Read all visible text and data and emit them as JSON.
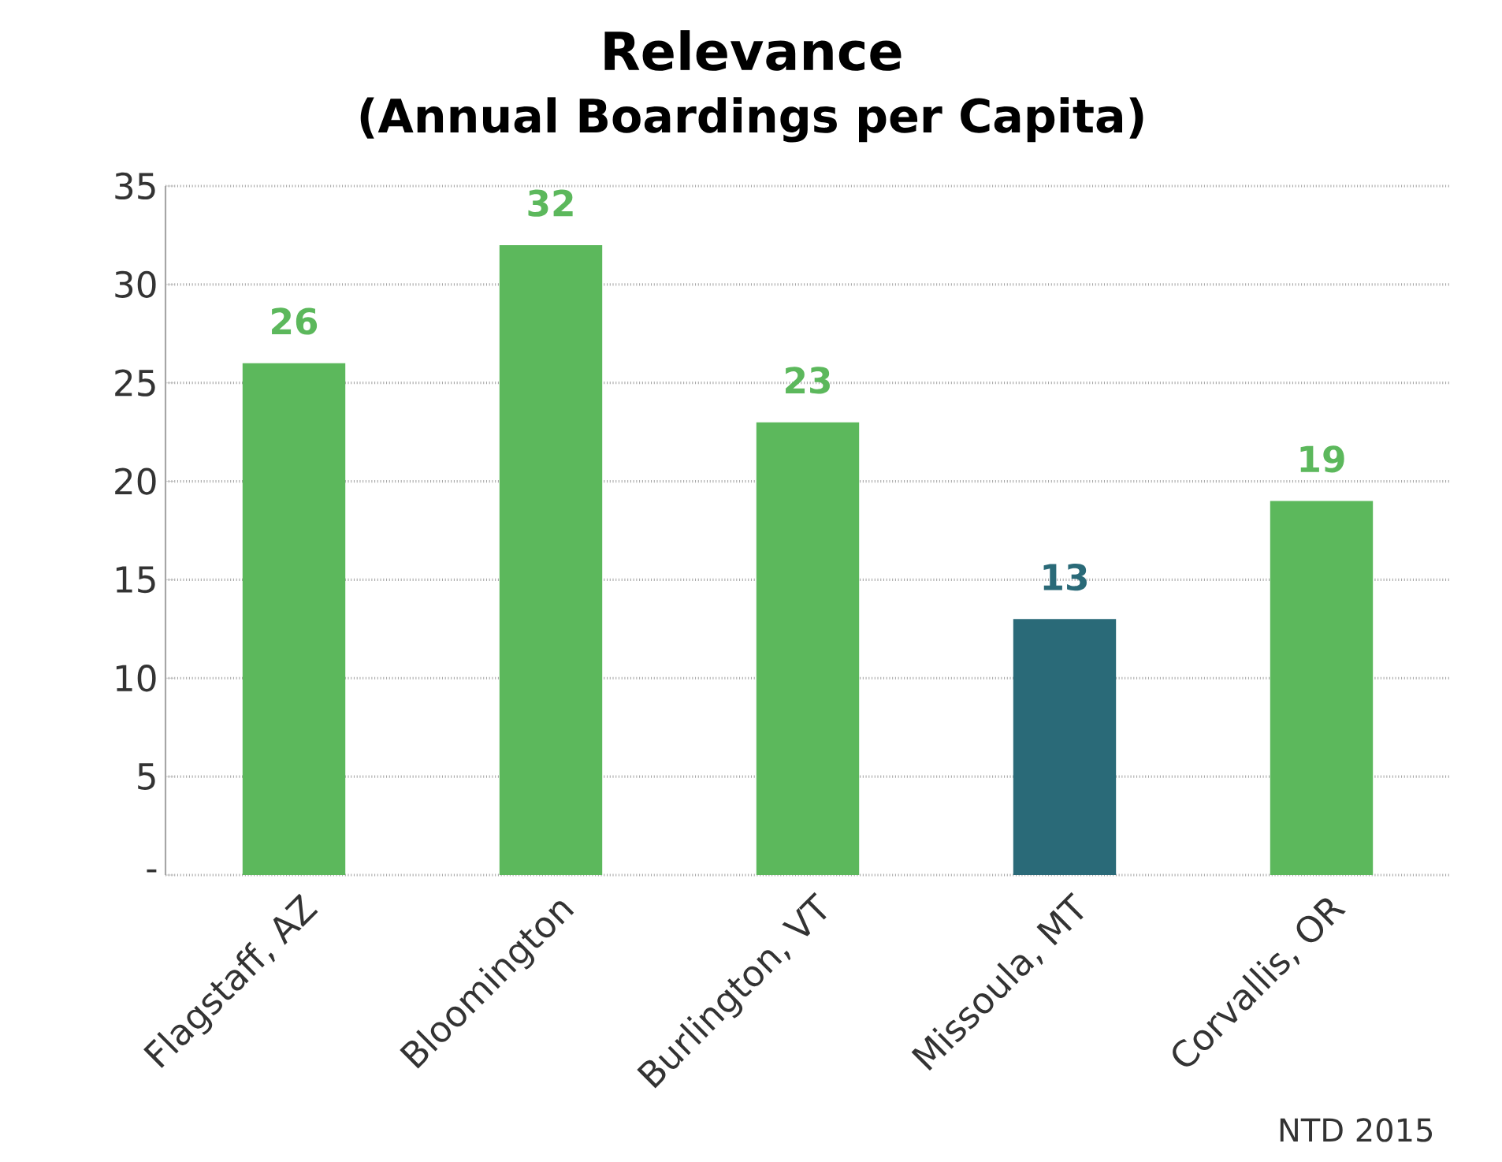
{
  "chart_data": {
    "type": "bar",
    "title": "Relevance",
    "subtitle": "(Annual Boardings per Capita)",
    "categories": [
      "Flagstaff, AZ",
      "Bloomington",
      "Burlington, VT",
      "Missoula, MT",
      "Corvallis, OR"
    ],
    "values": [
      26,
      32,
      23,
      13,
      19
    ],
    "colors": [
      "#5cb85c",
      "#5cb85c",
      "#5cb85c",
      "#2a6a78",
      "#5cb85c"
    ],
    "ylim": [
      0,
      35
    ],
    "yticks": [
      {
        "value": 0,
        "label": "-"
      },
      5,
      10,
      15,
      20,
      25,
      30,
      35
    ],
    "grid": "y",
    "data_labels": true,
    "annotations": [
      "NTD 2015"
    ]
  }
}
